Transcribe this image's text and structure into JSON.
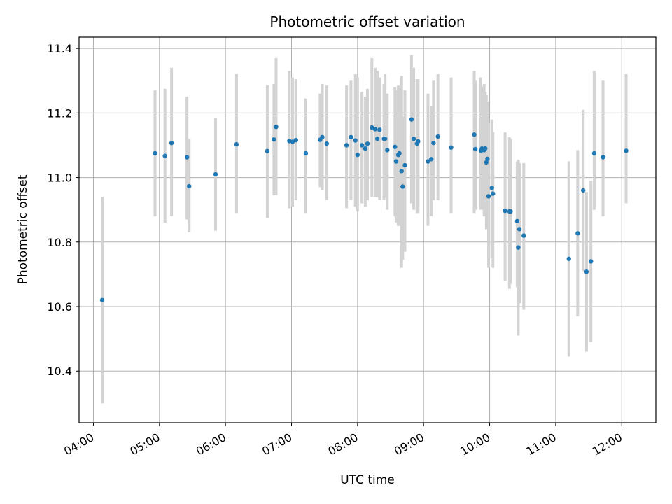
{
  "chart_data": {
    "type": "scatter",
    "title": "Photometric offset variation",
    "xlabel": "UTC time",
    "ylabel": "Photometric offset",
    "x_ticks": [
      "04:00",
      "05:00",
      "06:00",
      "07:00",
      "08:00",
      "09:00",
      "10:00",
      "11:00",
      "12:00"
    ],
    "y_ticks": [
      "10.4",
      "10.6",
      "10.8",
      "11.0",
      "11.2",
      "11.4"
    ],
    "xlim": [
      "03:47",
      "12:31"
    ],
    "ylim": [
      10.24,
      11.435
    ],
    "grid": true,
    "colors": {
      "points": "#1f77b4",
      "errorbars": "#d3d3d3",
      "grid": "#b0b0b0"
    },
    "series": [
      {
        "x": [
          "04:08",
          "04:56",
          "05:05",
          "05:11",
          "05:25",
          "05:27",
          "05:51",
          "06:10",
          "06:38",
          "06:44",
          "06:46",
          "06:58",
          "07:01",
          "07:04",
          "07:13",
          "07:26",
          "07:28",
          "07:32",
          "07:50",
          "07:54",
          "07:58",
          "08:00",
          "08:04",
          "08:07",
          "08:09",
          "08:13",
          "08:16",
          "08:18",
          "08:20",
          "08:24",
          "08:25",
          "08:27",
          "08:34",
          "08:35",
          "08:37",
          "08:38",
          "08:40",
          "08:41",
          "08:43",
          "08:49",
          "08:51",
          "08:54",
          "08:55",
          "09:04",
          "09:07",
          "09:09",
          "09:13",
          "09:25",
          "09:46",
          "09:47",
          "09:52",
          "09:53",
          "09:55",
          "09:56",
          "09:57",
          "09:58",
          "09:59",
          "10:02",
          "10:03",
          "10:14",
          "10:18",
          "10:19",
          "10:25",
          "10:26",
          "10:27",
          "10:31",
          "11:12",
          "11:20",
          "11:25",
          "11:28",
          "11:32",
          "11:35",
          "11:43",
          "12:04"
        ],
        "y": [
          10.62,
          11.075,
          11.067,
          11.107,
          11.063,
          10.973,
          11.01,
          11.103,
          11.082,
          11.118,
          11.157,
          11.113,
          11.111,
          11.116,
          11.075,
          11.117,
          11.125,
          11.105,
          11.1,
          11.125,
          11.115,
          11.07,
          11.1,
          11.09,
          11.105,
          11.155,
          11.15,
          11.12,
          11.148,
          11.12,
          11.12,
          11.085,
          11.095,
          11.05,
          11.07,
          11.075,
          11.02,
          10.972,
          11.038,
          11.18,
          11.12,
          11.105,
          11.112,
          11.05,
          11.057,
          11.107,
          11.127,
          11.093,
          11.133,
          11.088,
          11.083,
          11.09,
          11.085,
          11.09,
          11.047,
          11.058,
          10.942,
          10.968,
          10.95,
          10.897,
          10.895,
          10.895,
          10.865,
          10.783,
          10.84,
          10.82,
          10.748,
          10.827,
          10.96,
          10.708,
          10.74,
          11.075,
          11.063,
          11.083
        ],
        "err_low": [
          10.3,
          10.88,
          10.86,
          10.88,
          10.87,
          10.83,
          10.835,
          10.89,
          10.875,
          10.945,
          10.945,
          10.905,
          10.91,
          10.93,
          10.89,
          10.97,
          10.96,
          10.93,
          10.905,
          10.93,
          10.91,
          10.895,
          10.92,
          10.91,
          10.93,
          10.94,
          10.94,
          10.94,
          10.93,
          10.93,
          10.94,
          10.9,
          10.88,
          10.86,
          10.85,
          10.85,
          10.72,
          10.745,
          10.77,
          10.92,
          10.9,
          10.89,
          10.89,
          10.85,
          10.88,
          10.93,
          10.93,
          10.89,
          10.89,
          10.9,
          10.9,
          10.9,
          10.88,
          10.88,
          10.84,
          10.86,
          10.72,
          10.75,
          10.72,
          10.68,
          10.655,
          10.67,
          10.66,
          10.51,
          10.61,
          10.59,
          10.445,
          10.57,
          10.71,
          10.46,
          10.49,
          10.9,
          10.88,
          10.92
        ],
        "err_high": [
          10.94,
          11.27,
          11.275,
          11.34,
          11.25,
          11.12,
          11.185,
          11.32,
          11.285,
          11.29,
          11.37,
          11.33,
          11.31,
          11.305,
          11.245,
          11.26,
          11.29,
          11.285,
          11.285,
          11.3,
          11.32,
          11.31,
          11.265,
          11.25,
          11.275,
          11.37,
          11.34,
          11.33,
          11.31,
          11.29,
          11.32,
          11.26,
          11.28,
          11.27,
          11.285,
          11.275,
          11.315,
          11.19,
          11.27,
          11.38,
          11.34,
          11.305,
          11.305,
          11.26,
          11.22,
          11.3,
          11.32,
          11.31,
          11.33,
          11.3,
          11.31,
          11.28,
          11.29,
          11.265,
          11.255,
          11.235,
          11.17,
          11.18,
          11.14,
          11.14,
          11.125,
          11.12,
          11.05,
          11.055,
          11.045,
          11.045,
          11.05,
          11.085,
          11.21,
          10.955,
          10.99,
          11.33,
          11.3,
          11.32
        ]
      }
    ]
  }
}
